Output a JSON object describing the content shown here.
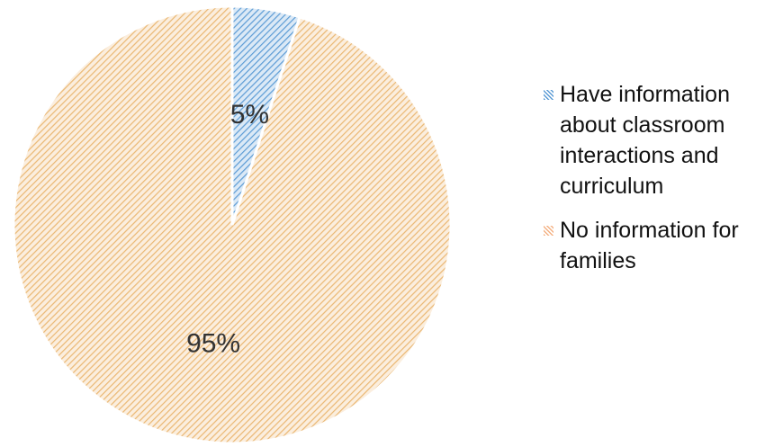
{
  "chart_data": {
    "type": "pie",
    "slices": [
      {
        "label": "Have information about classroom interactions and curriculum",
        "legend_lines": [
          "Have information",
          "about classroom",
          "interactions and",
          "curriculum"
        ],
        "value": 5,
        "display": "5%",
        "color": "#5b9bd5",
        "pattern": "diagonal-hatch"
      },
      {
        "label": "No information for families",
        "legend_lines": [
          "No information for",
          "families"
        ],
        "value": 95,
        "display": "95%",
        "color": "#f4b183",
        "pattern": "diagonal-hatch"
      }
    ],
    "legend_position": "right",
    "start_angle": "top",
    "direction": "clockwise"
  }
}
